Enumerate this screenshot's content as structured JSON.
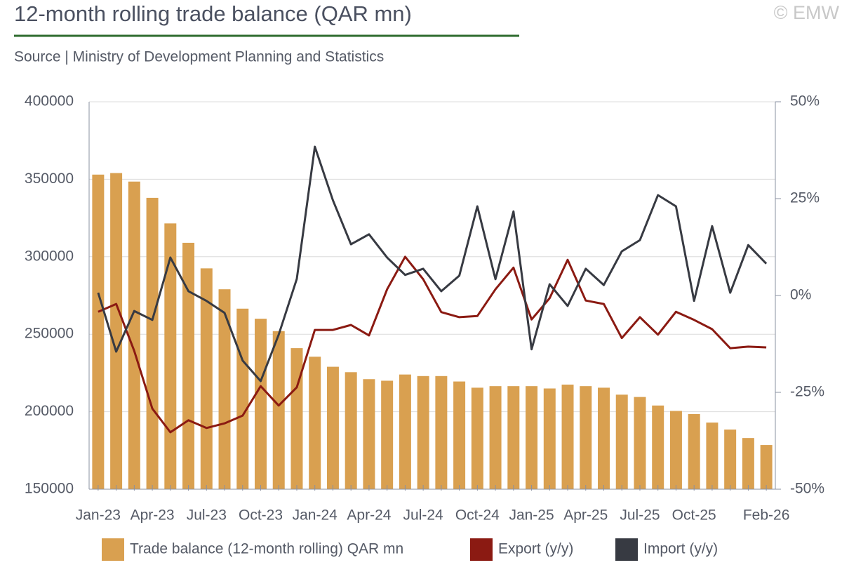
{
  "chart_data": {
    "type": "combo",
    "title": "12-month rolling trade balance (QAR mn)",
    "subtitle": "Source | Ministry of Development Planning and Statistics",
    "copyright": "© EMW",
    "categories": [
      "Jan-23",
      null,
      null,
      "Apr-23",
      null,
      null,
      "Jul-23",
      null,
      null,
      "Oct-23",
      null,
      null,
      "Jan-24",
      null,
      null,
      "Apr-24",
      null,
      null,
      "Jul-24",
      null,
      null,
      "Oct-24",
      null,
      null,
      "Jan-25",
      null,
      null,
      "Apr-25",
      null,
      null,
      "Jul-25",
      null,
      null,
      "Oct-25",
      null,
      null,
      null,
      "Feb-26"
    ],
    "ylim": [
      150000,
      400000
    ],
    "yticks": [
      150000,
      200000,
      250000,
      300000,
      350000,
      400000
    ],
    "y2lim": [
      -50,
      50
    ],
    "y2ticks": [
      {
        "value": -50,
        "label": "-50%"
      },
      {
        "value": -25,
        "label": "-25%"
      },
      {
        "value": 0,
        "label": "0%"
      },
      {
        "value": 25,
        "label": "25%"
      },
      {
        "value": 50,
        "label": "50%"
      }
    ],
    "grid": true,
    "series": [
      {
        "name": "Trade balance (12-month rolling) QAR mn",
        "type": "bar",
        "color": "#d9a050",
        "values": [
          353000,
          354000,
          348500,
          338000,
          321500,
          309000,
          292500,
          279000,
          266500,
          260000,
          252000,
          241000,
          235500,
          229000,
          225500,
          221000,
          220000,
          224000,
          223000,
          223000,
          219500,
          215500,
          216500,
          216500,
          216500,
          215000,
          217500,
          216500,
          215500,
          211000,
          209500,
          204000,
          200500,
          198500,
          193000,
          188500,
          183000,
          178500
        ]
      },
      {
        "name": "Export (y/y)",
        "type": "line",
        "axis": "y2",
        "color": "#8b1a12",
        "values": [
          -4.2,
          -2.2,
          -14.3,
          -29.2,
          -35.3,
          -32.2,
          -34.2,
          -33,
          -31,
          -23.4,
          -28.4,
          -23.7,
          -8.9,
          -8.9,
          -7.6,
          -10.3,
          1.6,
          10,
          4.2,
          -4.3,
          -5.6,
          -5.3,
          1.6,
          7.2,
          -6.2,
          -0.7,
          9.2,
          -1.3,
          -2.2,
          -11,
          -5.6,
          -10.1,
          -4.2,
          -6.3,
          -8.7,
          -13.6,
          -13.2,
          -13.4
        ]
      },
      {
        "name": "Import (y/y)",
        "type": "line",
        "axis": "y2",
        "color": "#373a42",
        "values": [
          0.7,
          -14.5,
          -4,
          -6.3,
          9.8,
          1.1,
          -1.4,
          -4.5,
          -16.8,
          -22.1,
          -10.1,
          4.3,
          38.4,
          24.6,
          13.2,
          15.8,
          9.8,
          5.3,
          6.9,
          1.1,
          5.1,
          23,
          4.2,
          21.7,
          -13.9,
          2.9,
          -2.7,
          6.9,
          2.7,
          11.4,
          14.3,
          25.9,
          23,
          -1.4,
          17.9,
          0.7,
          13,
          8.2
        ]
      }
    ]
  }
}
